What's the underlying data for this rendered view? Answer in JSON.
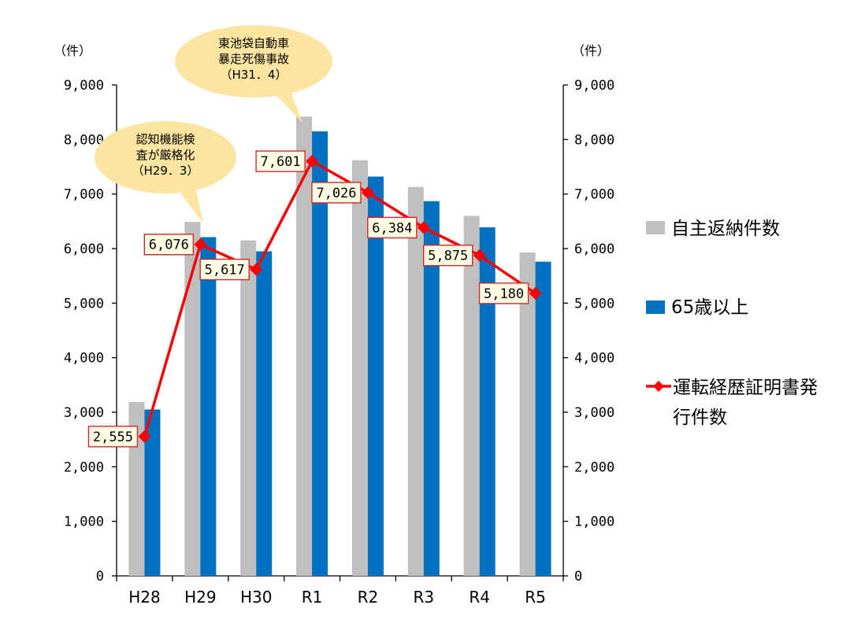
{
  "chart_data": {
    "type": "bar",
    "categories": [
      "H28",
      "H29",
      "H30",
      "R1",
      "R2",
      "R3",
      "R4",
      "R5"
    ],
    "series": [
      {
        "name": "自主返納件数",
        "type": "bar",
        "color": "#bfbfbf",
        "axis": "left",
        "values": [
          3190,
          6490,
          6150,
          8420,
          7620,
          7130,
          6600,
          5930
        ]
      },
      {
        "name": "65歳以上",
        "type": "bar",
        "color": "#0070c0",
        "axis": "left",
        "values": [
          3050,
          6210,
          5950,
          8150,
          7320,
          6870,
          6390,
          5760
        ]
      },
      {
        "name": "運転経歴証明書発行件数",
        "type": "line",
        "color": "#ff0000",
        "axis": "right",
        "values": [
          2555,
          6076,
          5617,
          7601,
          7026,
          6384,
          5875,
          5180
        ],
        "labels": [
          "2,555",
          "6,076",
          "5,617",
          "7,601",
          "7,026",
          "6,384",
          "5,875",
          "5,180"
        ]
      }
    ],
    "y_left": {
      "unit": "（件）",
      "range": [
        0,
        9000
      ],
      "ticks": [
        "0",
        "1,000",
        "2,000",
        "3,000",
        "4,000",
        "5,000",
        "6,000",
        "7,000",
        "8,000",
        "9,000"
      ]
    },
    "y_right": {
      "unit": "（件）",
      "range": [
        0,
        9000
      ],
      "ticks": [
        "0",
        "1,000",
        "2,000",
        "3,000",
        "4,000",
        "5,000",
        "6,000",
        "7,000",
        "8,000",
        "9,000"
      ]
    },
    "annotations": [
      {
        "category": "H29",
        "lines": [
          "認知機能検",
          "査が厳格化",
          "（H29．3）"
        ]
      },
      {
        "category": "R1",
        "lines": [
          "東池袋自動車",
          "暴走死傷事故",
          "（H31．4）"
        ]
      }
    ],
    "legend": {
      "position": "right",
      "items": [
        "自主返納件数",
        "65歳以上",
        "運転経歴証明書発",
        "行件数"
      ]
    },
    "grid": false
  }
}
